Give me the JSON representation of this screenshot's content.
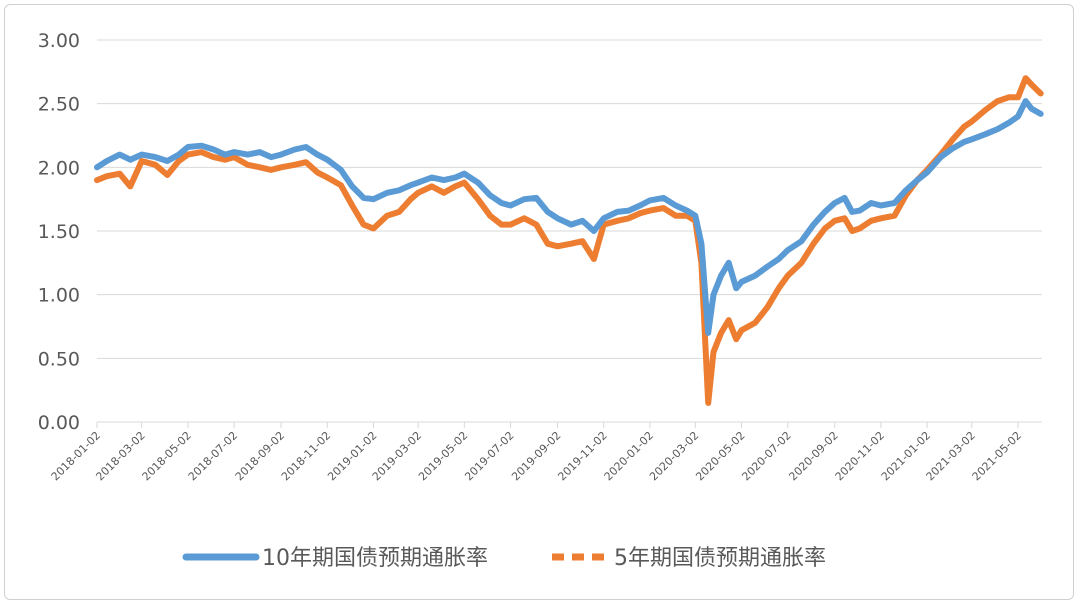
{
  "chart_data": {
    "type": "line",
    "y_ticks": [
      "3.00",
      "2.50",
      "2.00",
      "1.50",
      "1.00",
      "0.50",
      "0.00"
    ],
    "ylim": [
      0,
      3
    ],
    "x_ticks": [
      "2018-01-02",
      "2018-03-02",
      "2018-05-02",
      "2018-07-02",
      "2018-09-02",
      "2018-11-02",
      "2019-01-02",
      "2019-03-02",
      "2019-05-02",
      "2019-07-02",
      "2019-09-02",
      "2019-11-02",
      "2020-01-02",
      "2020-03-02",
      "2020-05-02",
      "2020-07-02",
      "2020-09-02",
      "2020-11-02",
      "2021-01-02",
      "2021-03-02",
      "2021-05-02"
    ],
    "grid": "horizontal",
    "legend_position": "bottom",
    "series": [
      {
        "name": "10年期国债预期通胀率",
        "color": "#5B9BD5",
        "style": "solid",
        "points": [
          [
            "2018-01-02",
            2.0
          ],
          [
            "2018-01-15",
            2.05
          ],
          [
            "2018-02-01",
            2.1
          ],
          [
            "2018-02-15",
            2.06
          ],
          [
            "2018-03-02",
            2.1
          ],
          [
            "2018-03-20",
            2.08
          ],
          [
            "2018-04-05",
            2.05
          ],
          [
            "2018-04-20",
            2.1
          ],
          [
            "2018-05-02",
            2.16
          ],
          [
            "2018-05-20",
            2.17
          ],
          [
            "2018-06-05",
            2.14
          ],
          [
            "2018-06-20",
            2.1
          ],
          [
            "2018-07-02",
            2.12
          ],
          [
            "2018-07-20",
            2.1
          ],
          [
            "2018-08-05",
            2.12
          ],
          [
            "2018-08-20",
            2.08
          ],
          [
            "2018-09-02",
            2.1
          ],
          [
            "2018-09-20",
            2.14
          ],
          [
            "2018-10-05",
            2.16
          ],
          [
            "2018-10-20",
            2.1
          ],
          [
            "2018-11-02",
            2.06
          ],
          [
            "2018-11-20",
            1.98
          ],
          [
            "2018-12-05",
            1.85
          ],
          [
            "2018-12-20",
            1.76
          ],
          [
            "2019-01-02",
            1.75
          ],
          [
            "2019-01-20",
            1.8
          ],
          [
            "2019-02-05",
            1.82
          ],
          [
            "2019-02-20",
            1.86
          ],
          [
            "2019-03-02",
            1.88
          ],
          [
            "2019-03-20",
            1.92
          ],
          [
            "2019-04-05",
            1.9
          ],
          [
            "2019-04-20",
            1.92
          ],
          [
            "2019-05-02",
            1.95
          ],
          [
            "2019-05-20",
            1.88
          ],
          [
            "2019-06-05",
            1.78
          ],
          [
            "2019-06-20",
            1.72
          ],
          [
            "2019-07-02",
            1.7
          ],
          [
            "2019-07-20",
            1.75
          ],
          [
            "2019-08-05",
            1.76
          ],
          [
            "2019-08-20",
            1.65
          ],
          [
            "2019-09-02",
            1.6
          ],
          [
            "2019-09-20",
            1.55
          ],
          [
            "2019-10-05",
            1.58
          ],
          [
            "2019-10-20",
            1.5
          ],
          [
            "2019-11-02",
            1.6
          ],
          [
            "2019-11-20",
            1.65
          ],
          [
            "2019-12-05",
            1.66
          ],
          [
            "2019-12-20",
            1.7
          ],
          [
            "2020-01-02",
            1.74
          ],
          [
            "2020-01-20",
            1.76
          ],
          [
            "2020-02-05",
            1.7
          ],
          [
            "2020-02-20",
            1.66
          ],
          [
            "2020-03-02",
            1.62
          ],
          [
            "2020-03-10",
            1.4
          ],
          [
            "2020-03-19",
            0.7
          ],
          [
            "2020-03-26",
            1.0
          ],
          [
            "2020-04-05",
            1.15
          ],
          [
            "2020-04-15",
            1.25
          ],
          [
            "2020-04-25",
            1.05
          ],
          [
            "2020-05-02",
            1.1
          ],
          [
            "2020-05-20",
            1.15
          ],
          [
            "2020-06-05",
            1.22
          ],
          [
            "2020-06-20",
            1.28
          ],
          [
            "2020-07-02",
            1.35
          ],
          [
            "2020-07-20",
            1.42
          ],
          [
            "2020-08-05",
            1.55
          ],
          [
            "2020-08-20",
            1.65
          ],
          [
            "2020-09-02",
            1.72
          ],
          [
            "2020-09-15",
            1.76
          ],
          [
            "2020-09-25",
            1.65
          ],
          [
            "2020-10-05",
            1.66
          ],
          [
            "2020-10-20",
            1.72
          ],
          [
            "2020-11-02",
            1.7
          ],
          [
            "2020-11-20",
            1.72
          ],
          [
            "2020-12-05",
            1.82
          ],
          [
            "2020-12-20",
            1.9
          ],
          [
            "2021-01-02",
            1.96
          ],
          [
            "2021-01-20",
            2.08
          ],
          [
            "2021-02-05",
            2.15
          ],
          [
            "2021-02-20",
            2.2
          ],
          [
            "2021-03-02",
            2.22
          ],
          [
            "2021-03-20",
            2.26
          ],
          [
            "2021-04-05",
            2.3
          ],
          [
            "2021-04-20",
            2.35
          ],
          [
            "2021-05-02",
            2.4
          ],
          [
            "2021-05-12",
            2.52
          ],
          [
            "2021-05-20",
            2.46
          ],
          [
            "2021-06-01",
            2.42
          ]
        ]
      },
      {
        "name": "5年期国债预期通胀率",
        "color": "#ED7D31",
        "style": "dashed",
        "points": [
          [
            "2018-01-02",
            1.9
          ],
          [
            "2018-01-15",
            1.93
          ],
          [
            "2018-02-01",
            1.95
          ],
          [
            "2018-02-15",
            1.85
          ],
          [
            "2018-03-02",
            2.05
          ],
          [
            "2018-03-20",
            2.02
          ],
          [
            "2018-04-05",
            1.94
          ],
          [
            "2018-04-20",
            2.05
          ],
          [
            "2018-05-02",
            2.1
          ],
          [
            "2018-05-20",
            2.12
          ],
          [
            "2018-06-05",
            2.08
          ],
          [
            "2018-06-20",
            2.06
          ],
          [
            "2018-07-02",
            2.08
          ],
          [
            "2018-07-20",
            2.02
          ],
          [
            "2018-08-05",
            2.0
          ],
          [
            "2018-08-20",
            1.98
          ],
          [
            "2018-09-02",
            2.0
          ],
          [
            "2018-09-20",
            2.02
          ],
          [
            "2018-10-05",
            2.04
          ],
          [
            "2018-10-20",
            1.96
          ],
          [
            "2018-11-02",
            1.92
          ],
          [
            "2018-11-20",
            1.86
          ],
          [
            "2018-12-05",
            1.7
          ],
          [
            "2018-12-20",
            1.55
          ],
          [
            "2019-01-02",
            1.52
          ],
          [
            "2019-01-20",
            1.62
          ],
          [
            "2019-02-05",
            1.65
          ],
          [
            "2019-02-20",
            1.75
          ],
          [
            "2019-03-02",
            1.8
          ],
          [
            "2019-03-20",
            1.85
          ],
          [
            "2019-04-05",
            1.8
          ],
          [
            "2019-04-20",
            1.85
          ],
          [
            "2019-05-02",
            1.88
          ],
          [
            "2019-05-20",
            1.75
          ],
          [
            "2019-06-05",
            1.62
          ],
          [
            "2019-06-20",
            1.55
          ],
          [
            "2019-07-02",
            1.55
          ],
          [
            "2019-07-20",
            1.6
          ],
          [
            "2019-08-05",
            1.55
          ],
          [
            "2019-08-20",
            1.4
          ],
          [
            "2019-09-02",
            1.38
          ],
          [
            "2019-09-20",
            1.4
          ],
          [
            "2019-10-05",
            1.42
          ],
          [
            "2019-10-20",
            1.28
          ],
          [
            "2019-11-02",
            1.55
          ],
          [
            "2019-11-20",
            1.58
          ],
          [
            "2019-12-05",
            1.6
          ],
          [
            "2019-12-20",
            1.64
          ],
          [
            "2020-01-02",
            1.66
          ],
          [
            "2020-01-20",
            1.68
          ],
          [
            "2020-02-05",
            1.62
          ],
          [
            "2020-02-20",
            1.62
          ],
          [
            "2020-03-02",
            1.58
          ],
          [
            "2020-03-10",
            1.25
          ],
          [
            "2020-03-19",
            0.15
          ],
          [
            "2020-03-26",
            0.55
          ],
          [
            "2020-04-05",
            0.7
          ],
          [
            "2020-04-15",
            0.8
          ],
          [
            "2020-04-25",
            0.65
          ],
          [
            "2020-05-02",
            0.72
          ],
          [
            "2020-05-20",
            0.78
          ],
          [
            "2020-06-05",
            0.9
          ],
          [
            "2020-06-20",
            1.05
          ],
          [
            "2020-07-02",
            1.15
          ],
          [
            "2020-07-20",
            1.25
          ],
          [
            "2020-08-05",
            1.4
          ],
          [
            "2020-08-20",
            1.52
          ],
          [
            "2020-09-02",
            1.58
          ],
          [
            "2020-09-15",
            1.6
          ],
          [
            "2020-09-25",
            1.5
          ],
          [
            "2020-10-05",
            1.52
          ],
          [
            "2020-10-20",
            1.58
          ],
          [
            "2020-11-02",
            1.6
          ],
          [
            "2020-11-20",
            1.62
          ],
          [
            "2020-12-05",
            1.78
          ],
          [
            "2020-12-20",
            1.9
          ],
          [
            "2021-01-02",
            1.98
          ],
          [
            "2021-01-20",
            2.1
          ],
          [
            "2021-02-05",
            2.22
          ],
          [
            "2021-02-20",
            2.32
          ],
          [
            "2021-03-02",
            2.36
          ],
          [
            "2021-03-20",
            2.45
          ],
          [
            "2021-04-05",
            2.52
          ],
          [
            "2021-04-20",
            2.55
          ],
          [
            "2021-05-02",
            2.55
          ],
          [
            "2021-05-12",
            2.7
          ],
          [
            "2021-05-20",
            2.65
          ],
          [
            "2021-06-01",
            2.58
          ]
        ]
      }
    ]
  }
}
